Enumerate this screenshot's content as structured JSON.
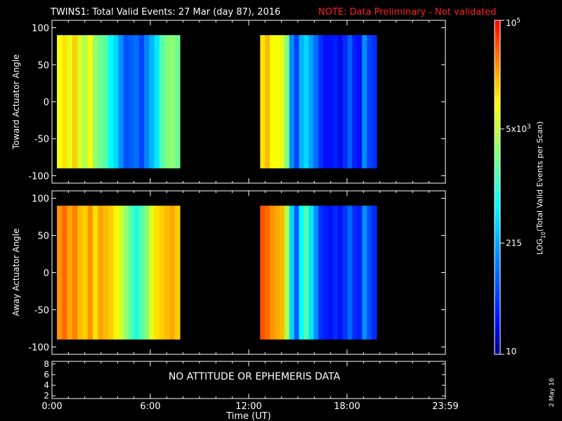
{
  "header": {
    "title": "TWINS1: Total Valid Events: 27 Mar (day  87), 2016",
    "note": "NOTE: Data Preliminary - Not validated",
    "note_color": "#ff2020"
  },
  "footer": {
    "date_stamp": "2 May 16",
    "message": "NO ATTITUDE OR EPHEMERIS DATA"
  },
  "chart_data": [
    {
      "type": "heatmap",
      "ylabel": "Toward Actuator Angle",
      "xlim": [
        0,
        24
      ],
      "ylim": [
        -110,
        110
      ],
      "data_yrange": [
        -90,
        90
      ],
      "y_ticks": [
        100,
        50,
        0,
        -50,
        -100
      ],
      "data_blocks": [
        {
          "t_start": 0.3,
          "t_end": 7.8,
          "level": "high",
          "profile": [
            0.74,
            0.78,
            0.72,
            0.8,
            0.7,
            0.66,
            0.74,
            0.62,
            0.58,
            0.55,
            0.45,
            0.4,
            0.3,
            0.2,
            0.22,
            0.25,
            0.18,
            0.28,
            0.35,
            0.42,
            0.55,
            0.6,
            0.62,
            0.58
          ]
        },
        {
          "t_start": 12.7,
          "t_end": 19.8,
          "level": "mixed",
          "profile": [
            0.78,
            0.82,
            0.75,
            0.74,
            0.72,
            0.6,
            0.3,
            0.18,
            0.35,
            0.4,
            0.32,
            0.25,
            0.15,
            0.1,
            0.1,
            0.12,
            0.08,
            0.14,
            0.22,
            0.12,
            0.1,
            0.3,
            0.18,
            0.15
          ]
        }
      ]
    },
    {
      "type": "heatmap",
      "ylabel": "Away Actuator Angle",
      "xlim": [
        0,
        24
      ],
      "ylim": [
        -110,
        110
      ],
      "data_yrange": [
        -90,
        90
      ],
      "y_ticks": [
        100,
        50,
        0,
        -50,
        -100
      ],
      "data_blocks": [
        {
          "t_start": 0.3,
          "t_end": 7.8,
          "level": "high",
          "profile": [
            0.86,
            0.9,
            0.84,
            0.88,
            0.82,
            0.8,
            0.86,
            0.78,
            0.84,
            0.82,
            0.8,
            0.76,
            0.7,
            0.62,
            0.55,
            0.48,
            0.55,
            0.6,
            0.72,
            0.78,
            0.8,
            0.82,
            0.84,
            0.8
          ]
        },
        {
          "t_start": 12.7,
          "t_end": 19.8,
          "level": "mixed",
          "profile": [
            0.92,
            0.9,
            0.86,
            0.84,
            0.82,
            0.66,
            0.4,
            0.22,
            0.45,
            0.55,
            0.42,
            0.3,
            0.15,
            0.12,
            0.1,
            0.14,
            0.1,
            0.16,
            0.24,
            0.14,
            0.12,
            0.3,
            0.2,
            0.14
          ]
        }
      ]
    },
    {
      "type": "line",
      "ylim": [
        1.5,
        8.5
      ],
      "y_ticks": [
        8,
        6,
        4,
        2
      ],
      "series": []
    }
  ],
  "xaxis": {
    "label": "Time (UT)",
    "ticks": [
      {
        "value": 0,
        "label": "0:00"
      },
      {
        "value": 6,
        "label": "6:00"
      },
      {
        "value": 12,
        "label": "12:00"
      },
      {
        "value": 18,
        "label": "18:00"
      },
      {
        "value": 24,
        "label": "23:59"
      }
    ]
  },
  "colorbar": {
    "label": "LOG10(Total Valid Events per Scan)",
    "label_main": "LOG",
    "label_sub": "10",
    "label_rest": "(Total Valid  Events per Scan)",
    "min": 10,
    "max": 100000,
    "ticks": [
      {
        "value": 100000,
        "label": "10",
        "sup": "5"
      },
      {
        "value": 5000,
        "label": "5x10",
        "sup": "3"
      },
      {
        "value": 215,
        "label": "215",
        "sup": ""
      },
      {
        "value": 10,
        "label": "10",
        "sup": ""
      }
    ]
  }
}
